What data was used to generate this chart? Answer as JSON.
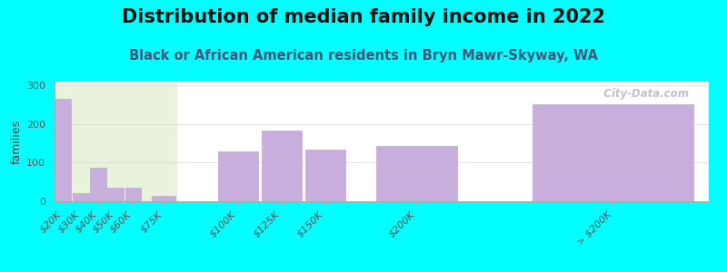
{
  "title": "Distribution of median family income in 2022",
  "subtitle": "Black or African American residents in Bryn Mawr-Skyway, WA",
  "ylabel": "families",
  "background_color": "#00FFFF",
  "plot_bg_color": "#FFFFFF",
  "bar_color": "#C8AEDD",
  "bar_edge_color": "#C0A8D0",
  "categories": [
    "$20K",
    "$30K",
    "$40K",
    "$50K",
    "$60K",
    "$75K",
    "$100K",
    "$125K",
    "$150K",
    "$200K",
    "> $200K"
  ],
  "values": [
    265,
    22,
    88,
    35,
    35,
    15,
    128,
    183,
    133,
    143,
    252
  ],
  "bar_widths": [
    1,
    1,
    1,
    1,
    1,
    1.5,
    2.5,
    2.5,
    2.5,
    5,
    10
  ],
  "bar_positions": [
    1,
    2,
    3,
    4,
    5,
    6.75,
    11,
    13.5,
    16,
    21.25,
    32.5
  ],
  "ylim": [
    0,
    310
  ],
  "yticks": [
    0,
    100,
    200,
    300
  ],
  "highlight_xstart": 0.5,
  "highlight_xend": 7.5,
  "highlight_color": "#E8F2DC",
  "watermark": "  City-Data.com",
  "title_fontsize": 15,
  "subtitle_fontsize": 10.5,
  "ylabel_fontsize": 9,
  "tick_label_fontsize": 8,
  "grid_color": "#DDDDDD",
  "title_color": "#111111",
  "subtitle_color": "#445577"
}
